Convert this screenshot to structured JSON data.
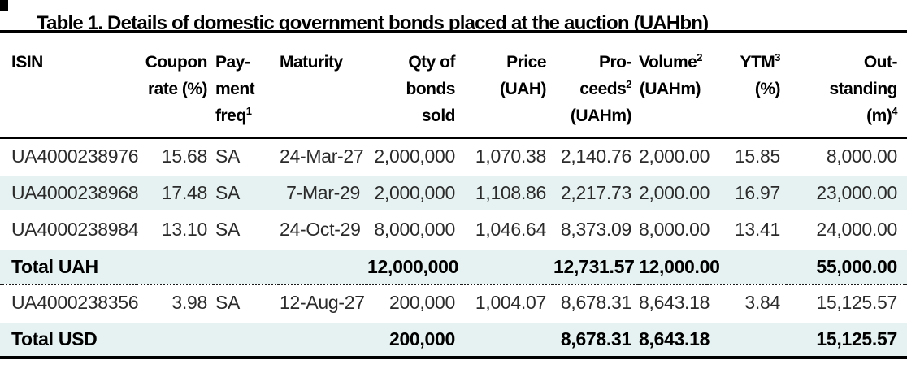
{
  "title": "Table 1. Details of domestic government bonds placed at the auction (UAHbn)",
  "colors": {
    "row_highlight": "#e6f2f1",
    "rule": "#000000"
  },
  "table": {
    "columns": [
      {
        "id": "isin",
        "align": "left",
        "header_lines": [
          {
            "text": "ISIN"
          }
        ]
      },
      {
        "id": "coupon",
        "align": "right",
        "header_lines": [
          {
            "text": "Coupon"
          },
          {
            "text": "rate (%)"
          }
        ]
      },
      {
        "id": "pay",
        "align": "left",
        "header_lines": [
          {
            "text": "Pay-"
          },
          {
            "text": "ment"
          },
          {
            "text": "freq",
            "sup": "1"
          }
        ]
      },
      {
        "id": "maturity",
        "align": "right",
        "header_lines": [
          {
            "text": "Maturity"
          }
        ]
      },
      {
        "id": "qty",
        "align": "right",
        "header_lines": [
          {
            "text": "Qty of"
          },
          {
            "text": "bonds"
          },
          {
            "text": "sold"
          }
        ]
      },
      {
        "id": "price",
        "align": "right",
        "header_lines": [
          {
            "text": "Price"
          },
          {
            "text": "(UAH)"
          }
        ]
      },
      {
        "id": "proceeds",
        "align": "right",
        "header_lines": [
          {
            "text": "Pro-"
          },
          {
            "text": "ceeds",
            "sup": "2"
          },
          {
            "text": "(UAHm)"
          }
        ]
      },
      {
        "id": "volume",
        "align": "right",
        "header_lines": [
          {
            "text": "Volume",
            "sup": "2"
          },
          {
            "text": "(UAHm)"
          }
        ]
      },
      {
        "id": "ytm",
        "align": "right",
        "header_lines": [
          {
            "text": "YTM",
            "sup": "3"
          },
          {
            "text": "(%)"
          }
        ]
      },
      {
        "id": "outstanding",
        "align": "right",
        "header_lines": [
          {
            "text": "Out-"
          },
          {
            "text": "standing"
          },
          {
            "text": "(m)",
            "sup": "4"
          }
        ]
      }
    ],
    "rows": [
      {
        "type": "data",
        "shaded": false,
        "cells": [
          "UA4000238976",
          "15.68",
          "SA",
          "24-Mar-27",
          "2,000,000",
          "1,070.38",
          "2,140.76",
          "2,000.00",
          "15.85",
          "8,000.00"
        ]
      },
      {
        "type": "data",
        "shaded": true,
        "cells": [
          "UA4000238968",
          "17.48",
          "SA",
          "7-Mar-29",
          "2,000,000",
          "1,108.86",
          "2,217.73",
          "2,000.00",
          "16.97",
          "23,000.00"
        ]
      },
      {
        "type": "data",
        "shaded": false,
        "cells": [
          "UA4000238984",
          "13.10",
          "SA",
          "24-Oct-29",
          "8,000,000",
          "1,046.64",
          "8,373.09",
          "8,000.00",
          "13.41",
          "24,000.00"
        ]
      },
      {
        "type": "total",
        "shaded": true,
        "dotted_below": true,
        "cells": [
          "Total UAH",
          "",
          "",
          "",
          "12,000,000",
          "",
          "12,731.57",
          "12,000.00",
          "",
          "55,000.00"
        ]
      },
      {
        "type": "data",
        "shaded": false,
        "cells": [
          "UA4000238356",
          "3.98",
          "SA",
          "12-Aug-27",
          "200,000",
          "1,004.07",
          "8,678.31",
          "8,643.18",
          "3.84",
          "15,125.57"
        ]
      },
      {
        "type": "total",
        "shaded": true,
        "cells": [
          "Total USD",
          "",
          "",
          "",
          "200,000",
          "",
          "8,678.31",
          "8,643.18",
          "",
          "15,125.57"
        ]
      }
    ]
  }
}
